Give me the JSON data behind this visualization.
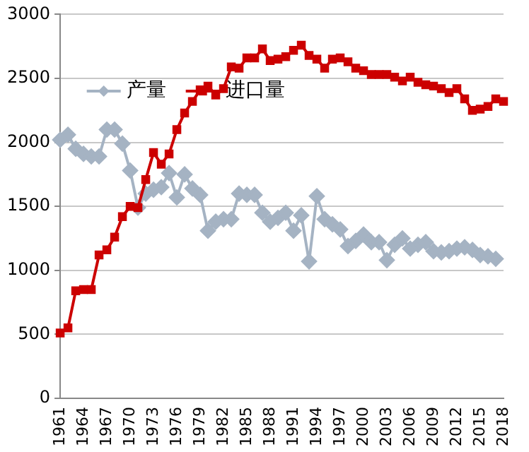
{
  "chart_data": {
    "type": "line",
    "categories": [
      "1961",
      null,
      null,
      "1964",
      null,
      null,
      "1967",
      null,
      null,
      "1970",
      null,
      null,
      "1973",
      null,
      null,
      "1976",
      null,
      null,
      "1979",
      null,
      null,
      "1982",
      null,
      null,
      "1985",
      null,
      null,
      "1988",
      null,
      null,
      "1991",
      null,
      null,
      "1994",
      null,
      null,
      "1997",
      null,
      null,
      "2000",
      null,
      null,
      "2003",
      null,
      null,
      "2006",
      null,
      null,
      "2009",
      null,
      null,
      "2012",
      null,
      null,
      "2015",
      null,
      null,
      "2018"
    ],
    "series": [
      {
        "name": "产量",
        "color": "#a5b3c3",
        "marker": "diamond",
        "values": [
          2020,
          2060,
          1950,
          1910,
          1890,
          1890,
          2100,
          2100,
          1990,
          1780,
          1490,
          1600,
          1630,
          1650,
          1760,
          1570,
          1750,
          1640,
          1590,
          1310,
          1380,
          1400,
          1400,
          1600,
          1590,
          1590,
          1450,
          1380,
          1410,
          1450,
          1310,
          1430,
          1070,
          1580,
          1400,
          1360,
          1320,
          1190,
          1230,
          1280,
          1220,
          1220,
          1080,
          1200,
          1250,
          1170,
          1200,
          1220,
          1150,
          1140,
          1150,
          1170,
          1180,
          1160,
          1120,
          1110,
          1090,
          null
        ]
      },
      {
        "name": "进口量",
        "color": "#cc0000",
        "marker": "square",
        "values": [
          510,
          550,
          840,
          850,
          850,
          1120,
          1160,
          1260,
          1420,
          1500,
          1490,
          1710,
          1920,
          1830,
          1910,
          2100,
          2230,
          2320,
          2410,
          2440,
          2370,
          2420,
          2590,
          2580,
          2660,
          2660,
          2730,
          2640,
          2650,
          2670,
          2720,
          2760,
          2680,
          2650,
          2580,
          2650,
          2660,
          2630,
          2580,
          2560,
          2530,
          2530,
          2530,
          2510,
          2480,
          2510,
          2470,
          2450,
          2440,
          2420,
          2390,
          2420,
          2340,
          2250,
          2260,
          2280,
          2340,
          2320
        ]
      }
    ],
    "ylim": [
      0,
      3000
    ],
    "yticks": [
      0,
      500,
      1000,
      1500,
      2000,
      2500,
      3000
    ],
    "grid": "y",
    "legend": "top left",
    "line_style": "solid"
  }
}
